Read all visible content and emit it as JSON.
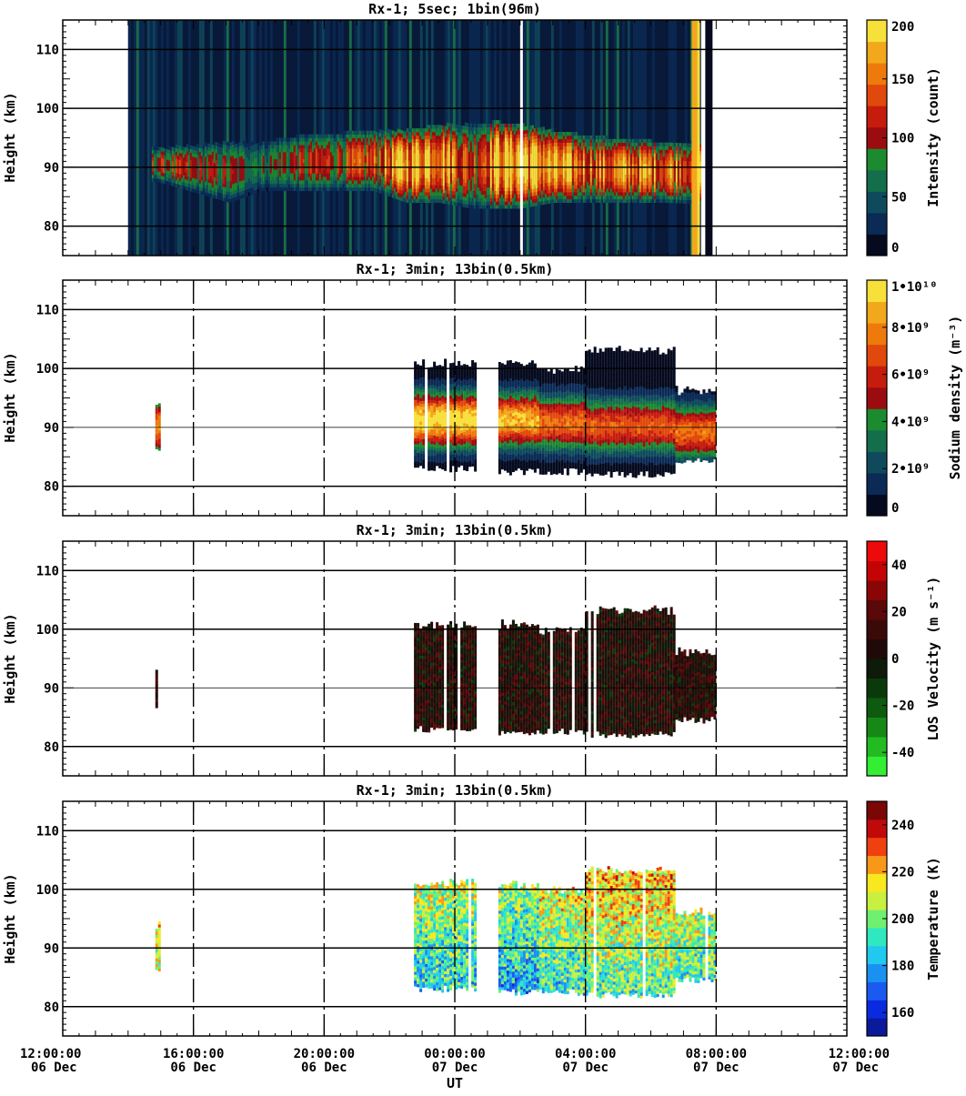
{
  "x_axis": {
    "label": "UT",
    "ticks": [
      {
        "time": "12:00:00",
        "date": "06 Dec"
      },
      {
        "time": "16:00:00",
        "date": "06 Dec"
      },
      {
        "time": "20:00:00",
        "date": "06 Dec"
      },
      {
        "time": "00:00:00",
        "date": "07 Dec"
      },
      {
        "time": "04:00:00",
        "date": "07 Dec"
      },
      {
        "time": "08:00:00",
        "date": "07 Dec"
      },
      {
        "time": "12:00:00",
        "date": "07 Dec"
      }
    ]
  },
  "chart_data": [
    {
      "type": "heatmap",
      "title": "Rx-1;  5sec; 1bin(96m)",
      "ylabel": "Height (km)",
      "xlabel": "UT",
      "xlim": [
        "2023-12-06 12:00",
        "2023-12-07 12:00"
      ],
      "ylim": [
        75,
        115
      ],
      "yticks": [
        80,
        90,
        100,
        110
      ],
      "colorbar_label": "Intensity (count)",
      "colorbar_ticks": [
        "0",
        "50",
        "100",
        "150",
        "200"
      ],
      "colorbar_range": [
        0,
        200
      ],
      "colormap": [
        "#050a1e",
        "#0b2a55",
        "#0f4a5c",
        "#146e4c",
        "#1c8a2e",
        "#9b0c10",
        "#c61c0e",
        "#e0480c",
        "#ee7a0c",
        "#f2a81c",
        "#f8e03a"
      ],
      "observation_window": [
        "2023-12-06 14:00",
        "2023-12-07 07:30"
      ],
      "sodium_layer": [
        {
          "time": "2023-12-06 14:55",
          "bottom_km": 87.5,
          "top_km": 93.0,
          "intensity": 110
        },
        {
          "time": "2023-12-06 17:05",
          "bottom_km": 84.0,
          "top_km": 94.0,
          "intensity": 95
        },
        {
          "time": "2023-12-06 18:05",
          "bottom_km": 86.0,
          "top_km": 94.0,
          "intensity": 80
        },
        {
          "time": "2023-12-06 19:05",
          "bottom_km": 86.0,
          "top_km": 95.0,
          "intensity": 105
        },
        {
          "time": "2023-12-06 21:30",
          "bottom_km": 86.0,
          "top_km": 96.0,
          "intensity": 130
        },
        {
          "time": "2023-12-06 22:30",
          "bottom_km": 84.0,
          "top_km": 96.0,
          "intensity": 190
        },
        {
          "time": "2023-12-06 23:30",
          "bottom_km": 84.0,
          "top_km": 97.0,
          "intensity": 200
        },
        {
          "time": "2023-12-07 00:30",
          "bottom_km": 83.0,
          "top_km": 97.0,
          "intensity": 120
        },
        {
          "time": "2023-12-07 01:15",
          "bottom_km": 83.0,
          "top_km": 97.5,
          "intensity": 200
        },
        {
          "time": "2023-12-07 02:00",
          "bottom_km": 83.0,
          "top_km": 97.0,
          "intensity": 200
        },
        {
          "time": "2023-12-07 03:00",
          "bottom_km": 84.0,
          "top_km": 96.0,
          "intensity": 170
        },
        {
          "time": "2023-12-07 04:15",
          "bottom_km": 84.0,
          "top_km": 95.0,
          "intensity": 150
        },
        {
          "time": "2023-12-07 05:15",
          "bottom_km": 84.0,
          "top_km": 94.5,
          "intensity": 160
        },
        {
          "time": "2023-12-07 06:30",
          "bottom_km": 84.0,
          "top_km": 94.0,
          "intensity": 160
        }
      ]
    },
    {
      "type": "heatmap",
      "title": "Rx-1; 3min; 13bin(0.5km)",
      "ylabel": "Height (km)",
      "xlabel": "UT",
      "xlim": [
        "2023-12-06 12:00",
        "2023-12-07 12:00"
      ],
      "ylim": [
        75,
        115
      ],
      "yticks": [
        80,
        90,
        100,
        110
      ],
      "colorbar_label": "Sodium density (m⁻³)",
      "colorbar_ticks": [
        "0",
        "2•10⁹",
        "4•10⁹",
        "6•10⁹",
        "8•10⁹",
        "1•10¹⁰"
      ],
      "colorbar_range": [
        0,
        10000000000
      ],
      "colormap": [
        "#050a1e",
        "#0b2a55",
        "#0f4a5c",
        "#146e4c",
        "#1c8a2e",
        "#9b0c10",
        "#c61c0e",
        "#e0480c",
        "#ee7a0c",
        "#f2a81c",
        "#f8e03a"
      ],
      "profiles": [
        {
          "start": "2023-12-06 14:50",
          "end": "2023-12-06 14:58",
          "bottom_km": 86.0,
          "top_km": 93.5,
          "peak_km": 90.0,
          "peak_density": 8000000000
        },
        {
          "start": "2023-12-06 22:45",
          "end": "2023-12-07 00:40",
          "bottom_km": 83.0,
          "top_km": 100.5,
          "peak_km": 91.0,
          "peak_density": 10000000000
        },
        {
          "start": "2023-12-07 01:20",
          "end": "2023-12-07 02:35",
          "bottom_km": 82.5,
          "top_km": 100.5,
          "peak_km": 91.0,
          "peak_density": 9000000000
        },
        {
          "start": "2023-12-07 02:35",
          "end": "2023-12-07 04:00",
          "bottom_km": 82.5,
          "top_km": 99.5,
          "peak_km": 90.5,
          "peak_density": 7500000000
        },
        {
          "start": "2023-12-07 04:00",
          "end": "2023-12-07 06:45",
          "bottom_km": 82.0,
          "top_km": 103.0,
          "peak_km": 90.0,
          "peak_density": 7000000000
        },
        {
          "start": "2023-12-07 06:45",
          "end": "2023-12-07 08:00",
          "bottom_km": 84.5,
          "top_km": 96.0,
          "peak_km": 89.0,
          "peak_density": 7500000000
        }
      ]
    },
    {
      "type": "heatmap",
      "title": "Rx-1; 3min; 13bin(0.5km)",
      "ylabel": "Height (km)",
      "xlabel": "UT",
      "xlim": [
        "2023-12-06 12:00",
        "2023-12-07 12:00"
      ],
      "ylim": [
        75,
        115
      ],
      "yticks": [
        80,
        90,
        100,
        110
      ],
      "colorbar_label": "LOS Velocity (m s⁻¹)",
      "colorbar_ticks": [
        "-40",
        "-20",
        "0",
        "20",
        "40"
      ],
      "colorbar_range": [
        -50,
        50
      ],
      "colormap": [
        "#33ee33",
        "#22bb22",
        "#168816",
        "#0e5a0e",
        "#0a3a0a",
        "#0e1a0a",
        "#200a08",
        "#3a0a08",
        "#5a0808",
        "#8a0606",
        "#c40404",
        "#ee0a0a"
      ],
      "profiles": [
        {
          "start": "2023-12-06 14:50",
          "end": "2023-12-06 14:58",
          "bottom_km": 86.5,
          "top_km": 93.5,
          "typical_velocity": 5
        },
        {
          "start": "2023-12-06 22:45",
          "end": "2023-12-07 00:40",
          "bottom_km": 83.0,
          "top_km": 100.5,
          "typical_velocity": 5
        },
        {
          "start": "2023-12-07 01:20",
          "end": "2023-12-07 02:35",
          "bottom_km": 82.5,
          "top_km": 100.5,
          "typical_velocity": 5
        },
        {
          "start": "2023-12-07 02:35",
          "end": "2023-12-07 04:00",
          "bottom_km": 82.5,
          "top_km": 99.5,
          "typical_velocity": 5
        },
        {
          "start": "2023-12-07 04:00",
          "end": "2023-12-07 06:45",
          "bottom_km": 82.0,
          "top_km": 103.0,
          "typical_velocity": 5
        },
        {
          "start": "2023-12-07 06:45",
          "end": "2023-12-07 08:00",
          "bottom_km": 84.5,
          "top_km": 96.0,
          "typical_velocity": 5
        }
      ]
    },
    {
      "type": "heatmap",
      "title": "Rx-1; 3min; 13bin(0.5km)",
      "ylabel": "Height (km)",
      "xlabel": "UT",
      "xlim": [
        "2023-12-06 12:00",
        "2023-12-07 12:00"
      ],
      "ylim": [
        75,
        115
      ],
      "yticks": [
        80,
        90,
        100,
        110
      ],
      "colorbar_label": "Temperature (K)",
      "colorbar_ticks": [
        "160",
        "180",
        "200",
        "220",
        "240"
      ],
      "colorbar_range": [
        150,
        250
      ],
      "colormap": [
        "#0a1a9a",
        "#0a2ae0",
        "#1a5af0",
        "#1a90f0",
        "#22c8ee",
        "#30e8c0",
        "#70f070",
        "#c8f040",
        "#f8e820",
        "#f89818",
        "#f04010",
        "#c00a0a",
        "#7a0606"
      ],
      "profiles": [
        {
          "start": "2023-12-06 14:50",
          "end": "2023-12-06 14:58",
          "bottom_km": 86.5,
          "top_km": 93.5,
          "mean_temperature": 215
        },
        {
          "start": "2023-12-06 22:45",
          "end": "2023-12-07 00:40",
          "bottom_km": 83.0,
          "top_km": 101.0,
          "mean_temperature": 195
        },
        {
          "start": "2023-12-07 01:20",
          "end": "2023-12-07 02:35",
          "bottom_km": 82.5,
          "top_km": 100.5,
          "mean_temperature": 190
        },
        {
          "start": "2023-12-07 02:35",
          "end": "2023-12-07 04:00",
          "bottom_km": 82.5,
          "top_km": 99.5,
          "mean_temperature": 200
        },
        {
          "start": "2023-12-07 04:00",
          "end": "2023-12-07 06:45",
          "bottom_km": 82.0,
          "top_km": 103.0,
          "mean_temperature": 205
        },
        {
          "start": "2023-12-07 06:45",
          "end": "2023-12-07 08:00",
          "bottom_km": 84.5,
          "top_km": 96.0,
          "mean_temperature": 200
        }
      ]
    }
  ]
}
